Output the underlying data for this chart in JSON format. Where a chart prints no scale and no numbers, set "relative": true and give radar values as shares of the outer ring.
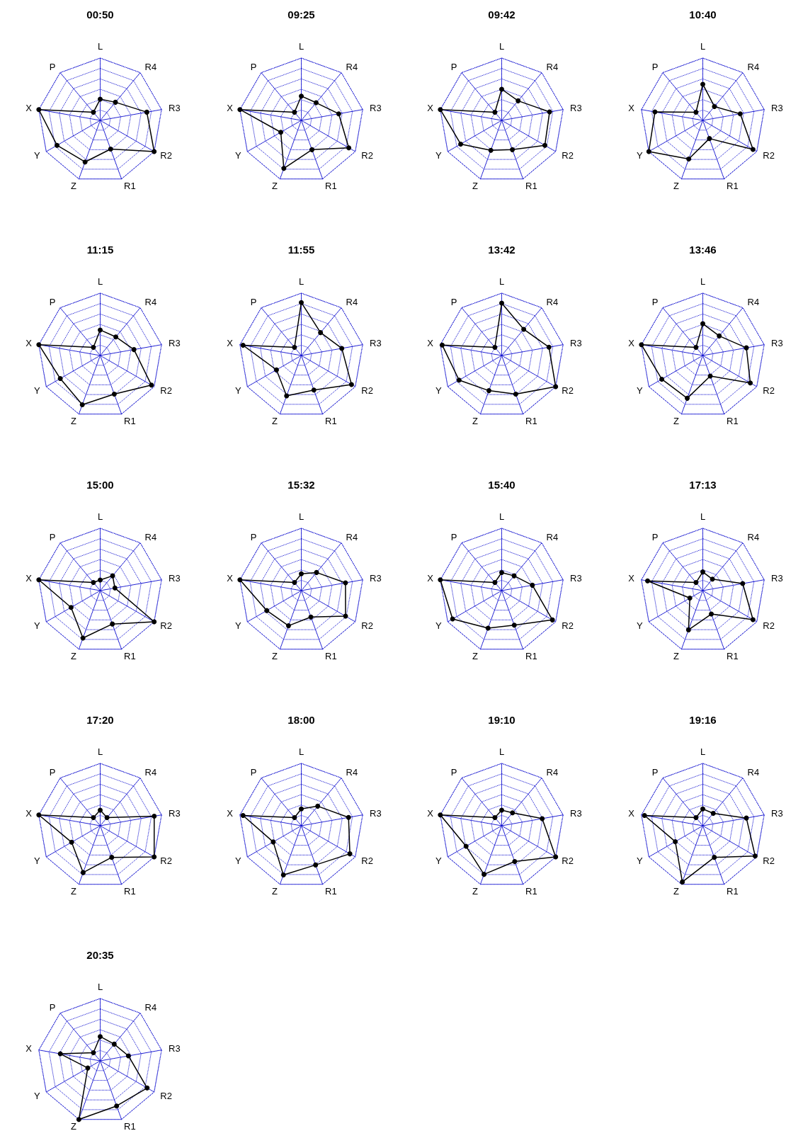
{
  "chart_data": [
    {
      "type": "radar",
      "title": "00:50",
      "categories": [
        "L",
        "R4",
        "R3",
        "R2",
        "R1",
        "Z",
        "Y",
        "X",
        "P"
      ],
      "relative": true,
      "grid": true,
      "marker": "circle",
      "series": [
        {
          "color": "#000000",
          "values": [
            0.34,
            0.38,
            0.76,
            1,
            0.49,
            0.71,
            0.8,
            1,
            0.17
          ]
        }
      ]
    },
    {
      "type": "radar",
      "title": "09:25",
      "categories": [
        "L",
        "R4",
        "R3",
        "R2",
        "R1",
        "Z",
        "Y",
        "X",
        "P"
      ],
      "relative": true,
      "grid": true,
      "marker": "circle",
      "series": [
        {
          "color": "#000000",
          "values": [
            0.39,
            0.37,
            0.61,
            0.88,
            0.5,
            0.82,
            0.38,
            1,
            0.17
          ]
        }
      ]
    },
    {
      "type": "radar",
      "title": "09:42",
      "categories": [
        "L",
        "R4",
        "R3",
        "R2",
        "R1",
        "Z",
        "Y",
        "X",
        "P"
      ],
      "relative": true,
      "grid": true,
      "marker": "circle",
      "series": [
        {
          "color": "#000000",
          "values": [
            0.5,
            0.41,
            0.78,
            0.8,
            0.5,
            0.51,
            0.76,
            1,
            0.17
          ]
        }
      ]
    },
    {
      "type": "radar",
      "title": "10:40",
      "categories": [
        "L",
        "R4",
        "R3",
        "R2",
        "R1",
        "Z",
        "Y",
        "X",
        "P"
      ],
      "relative": true,
      "grid": true,
      "marker": "circle",
      "series": [
        {
          "color": "#000000",
          "values": [
            0.58,
            0.29,
            0.61,
            0.93,
            0.31,
            0.66,
            1,
            0.78,
            0.17
          ]
        }
      ]
    },
    {
      "type": "radar",
      "title": "11:15",
      "categories": [
        "L",
        "R4",
        "R3",
        "R2",
        "R1",
        "Z",
        "Y",
        "X",
        "P"
      ],
      "relative": true,
      "grid": true,
      "marker": "circle",
      "series": [
        {
          "color": "#000000",
          "values": [
            0.41,
            0.39,
            0.55,
            0.95,
            0.66,
            0.84,
            0.74,
            1,
            0.17
          ]
        }
      ]
    },
    {
      "type": "radar",
      "title": "11:55",
      "categories": [
        "L",
        "R4",
        "R3",
        "R2",
        "R1",
        "Z",
        "Y",
        "X",
        "P"
      ],
      "relative": true,
      "grid": true,
      "marker": "circle",
      "series": [
        {
          "color": "#000000",
          "values": [
            0.85,
            0.48,
            0.66,
            0.93,
            0.59,
            0.69,
            0.46,
            0.95,
            0.17
          ]
        }
      ]
    },
    {
      "type": "radar",
      "title": "13:42",
      "categories": [
        "L",
        "R4",
        "R3",
        "R2",
        "R1",
        "Z",
        "Y",
        "X",
        "P"
      ],
      "relative": true,
      "grid": true,
      "marker": "circle",
      "series": [
        {
          "color": "#000000",
          "values": [
            0.84,
            0.55,
            0.77,
            1,
            0.66,
            0.6,
            0.79,
            0.97,
            0.17
          ]
        }
      ]
    },
    {
      "type": "radar",
      "title": "13:46",
      "categories": [
        "L",
        "R4",
        "R3",
        "R2",
        "R1",
        "Z",
        "Y",
        "X",
        "P"
      ],
      "relative": true,
      "grid": true,
      "marker": "circle",
      "series": [
        {
          "color": "#000000",
          "values": [
            0.51,
            0.41,
            0.71,
            0.88,
            0.35,
            0.73,
            0.76,
            1,
            0.17
          ]
        }
      ]
    },
    {
      "type": "radar",
      "title": "15:00",
      "categories": [
        "L",
        "R4",
        "R3",
        "R2",
        "R1",
        "Z",
        "Y",
        "X",
        "P"
      ],
      "relative": true,
      "grid": true,
      "marker": "circle",
      "series": [
        {
          "color": "#000000",
          "values": [
            0.17,
            0.31,
            0.24,
            1,
            0.57,
            0.81,
            0.54,
            1,
            0.17
          ]
        }
      ]
    },
    {
      "type": "radar",
      "title": "15:32",
      "categories": [
        "L",
        "R4",
        "R3",
        "R2",
        "R1",
        "Z",
        "Y",
        "X",
        "P"
      ],
      "relative": true,
      "grid": true,
      "marker": "circle",
      "series": [
        {
          "color": "#000000",
          "values": [
            0.27,
            0.38,
            0.72,
            0.82,
            0.45,
            0.6,
            0.64,
            1,
            0.17
          ]
        }
      ]
    },
    {
      "type": "radar",
      "title": "15:40",
      "categories": [
        "L",
        "R4",
        "R3",
        "R2",
        "R1",
        "Z",
        "Y",
        "X",
        "P"
      ],
      "relative": true,
      "grid": true,
      "marker": "circle",
      "series": [
        {
          "color": "#000000",
          "values": [
            0.29,
            0.31,
            0.5,
            0.94,
            0.59,
            0.64,
            0.91,
            1,
            0.17
          ]
        }
      ]
    },
    {
      "type": "radar",
      "title": "17:13",
      "categories": [
        "L",
        "R4",
        "R3",
        "R2",
        "R1",
        "Z",
        "Y",
        "X",
        "P"
      ],
      "relative": true,
      "grid": true,
      "marker": "circle",
      "series": [
        {
          "color": "#000000",
          "values": [
            0.3,
            0.24,
            0.65,
            0.93,
            0.4,
            0.67,
            0.24,
            0.9,
            0.17
          ]
        }
      ]
    },
    {
      "type": "radar",
      "title": "17:20",
      "categories": [
        "L",
        "R4",
        "R3",
        "R2",
        "R1",
        "Z",
        "Y",
        "X",
        "P"
      ],
      "relative": true,
      "grid": true,
      "marker": "circle",
      "series": [
        {
          "color": "#000000",
          "values": [
            0.25,
            0.17,
            0.88,
            1,
            0.54,
            0.8,
            0.53,
            1,
            0.17
          ]
        }
      ]
    },
    {
      "type": "radar",
      "title": "18:00",
      "categories": [
        "L",
        "R4",
        "R3",
        "R2",
        "R1",
        "Z",
        "Y",
        "X",
        "P"
      ],
      "relative": true,
      "grid": true,
      "marker": "circle",
      "series": [
        {
          "color": "#000000",
          "values": [
            0.27,
            0.41,
            0.77,
            0.9,
            0.67,
            0.84,
            0.52,
            0.95,
            0.17
          ]
        }
      ]
    },
    {
      "type": "radar",
      "title": "19:10",
      "categories": [
        "L",
        "R4",
        "R3",
        "R2",
        "R1",
        "Z",
        "Y",
        "X",
        "P"
      ],
      "relative": true,
      "grid": true,
      "marker": "circle",
      "series": [
        {
          "color": "#000000",
          "values": [
            0.25,
            0.27,
            0.66,
            1,
            0.61,
            0.83,
            0.66,
            1,
            0.17
          ]
        }
      ]
    },
    {
      "type": "radar",
      "title": "19:16",
      "categories": [
        "L",
        "R4",
        "R3",
        "R2",
        "R1",
        "Z",
        "Y",
        "X",
        "P"
      ],
      "relative": true,
      "grid": true,
      "marker": "circle",
      "series": [
        {
          "color": "#000000",
          "values": [
            0.27,
            0.26,
            0.71,
            0.97,
            0.54,
            0.96,
            0.51,
            0.95,
            0.17
          ]
        }
      ]
    },
    {
      "type": "radar",
      "title": "20:35",
      "categories": [
        "L",
        "R4",
        "R3",
        "R2",
        "R1",
        "Z",
        "Y",
        "X",
        "P"
      ],
      "relative": true,
      "grid": true,
      "marker": "circle",
      "series": [
        {
          "color": "#000000",
          "values": [
            0.39,
            0.35,
            0.46,
            0.87,
            0.77,
            1,
            0.23,
            0.65,
            0.17
          ]
        }
      ]
    }
  ]
}
